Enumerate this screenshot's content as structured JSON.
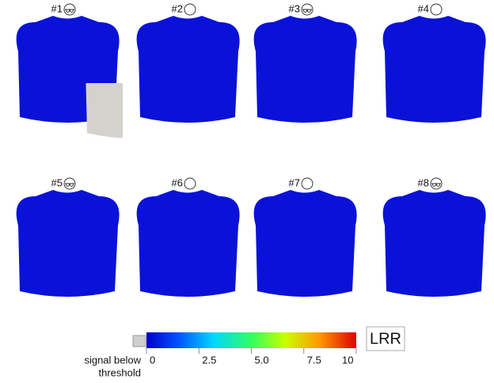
{
  "panels": [
    {
      "label": "#1"
    },
    {
      "label": "#2"
    },
    {
      "label": "#3"
    },
    {
      "label": "#4"
    },
    {
      "label": "#5"
    },
    {
      "label": "#6"
    },
    {
      "label": "#7"
    },
    {
      "label": "#8"
    }
  ],
  "colorbar": {
    "label": "LRR",
    "lim": [
      0,
      10
    ],
    "ticks": [
      0,
      2.5,
      {
        "value": 5,
        "label": "5.0"
      },
      7.5,
      10
    ]
  },
  "below_threshold": {
    "line1": "signal below",
    "line2": "threshold"
  }
}
